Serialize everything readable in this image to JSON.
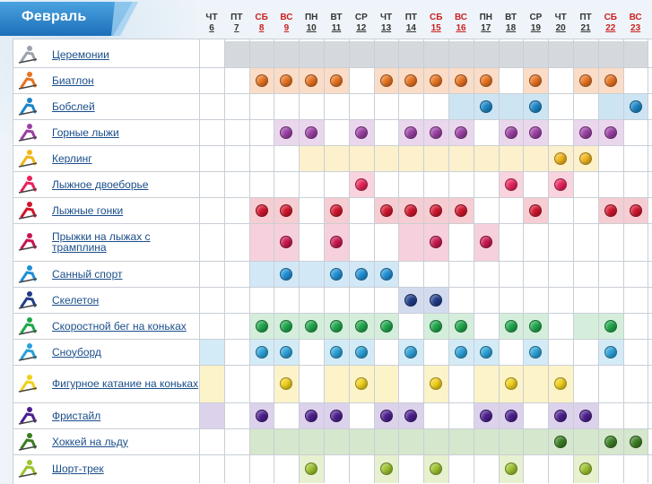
{
  "month": "Февраль",
  "days": [
    {
      "dow": "ЧТ",
      "date": "6"
    },
    {
      "dow": "ПТ",
      "date": "7"
    },
    {
      "dow": "СБ",
      "date": "8"
    },
    {
      "dow": "ВС",
      "date": "9"
    },
    {
      "dow": "ПН",
      "date": "10"
    },
    {
      "dow": "ВТ",
      "date": "11"
    },
    {
      "dow": "СР",
      "date": "12"
    },
    {
      "dow": "ЧТ",
      "date": "13"
    },
    {
      "dow": "ПТ",
      "date": "14"
    },
    {
      "dow": "СБ",
      "date": "15"
    },
    {
      "dow": "ВС",
      "date": "16"
    },
    {
      "dow": "ПН",
      "date": "17"
    },
    {
      "dow": "ВТ",
      "date": "18"
    },
    {
      "dow": "СР",
      "date": "19"
    },
    {
      "dow": "ЧТ",
      "date": "20"
    },
    {
      "dow": "ПТ",
      "date": "21"
    },
    {
      "dow": "СБ",
      "date": "22"
    },
    {
      "dow": "ВС",
      "date": "23"
    }
  ],
  "weekend_color": "#cc2222",
  "sports": [
    {
      "name": "Церемонии",
      "icon": "torch-icon",
      "color": "#9aa3ad",
      "fill": "#d5d9dd",
      "fill_days": [
        "7",
        "8",
        "9",
        "10",
        "11",
        "12",
        "13",
        "14",
        "15",
        "16",
        "17",
        "18",
        "19",
        "20",
        "21",
        "22",
        "23"
      ],
      "dot_days": []
    },
    {
      "name": "Биатлон",
      "icon": "biathlon-icon",
      "color": "#e8731f",
      "fill": "#fbdcc6",
      "fill_days": [
        "8",
        "9",
        "10",
        "11",
        "13",
        "14",
        "15",
        "16",
        "17",
        "19",
        "21",
        "22"
      ],
      "dot_days": [
        "8",
        "9",
        "10",
        "11",
        "13",
        "14",
        "15",
        "16",
        "17",
        "19",
        "21",
        "22"
      ]
    },
    {
      "name": "Бобслей",
      "icon": "bobsleigh-icon",
      "color": "#1a86c7",
      "fill": "#cde4f3",
      "fill_days": [
        "16",
        "17",
        "18",
        "19",
        "22",
        "23"
      ],
      "dot_days": [
        "17",
        "19",
        "23"
      ]
    },
    {
      "name": "Горные лыжи",
      "icon": "alpine-skiing-icon",
      "color": "#9b3fa4",
      "fill": "#ead7ed",
      "fill_days": [
        "9",
        "10",
        "12",
        "14",
        "15",
        "16",
        "18",
        "19",
        "21",
        "22"
      ],
      "dot_days": [
        "9",
        "10",
        "12",
        "14",
        "15",
        "16",
        "18",
        "19",
        "21",
        "22"
      ]
    },
    {
      "name": "Керлинг",
      "icon": "curling-icon",
      "color": "#f2b619",
      "fill": "#fdf0cc",
      "fill_days": [
        "10",
        "11",
        "12",
        "13",
        "14",
        "15",
        "16",
        "17",
        "18",
        "19",
        "20",
        "21"
      ],
      "dot_days": [
        "20",
        "21"
      ]
    },
    {
      "name": "Лыжное двоеборье",
      "icon": "nordic-combined-icon",
      "color": "#e9225a",
      "fill": "#f9d3de",
      "fill_days": [
        "12",
        "18",
        "20"
      ],
      "dot_days": [
        "12",
        "18",
        "20"
      ]
    },
    {
      "name": "Лыжные гонки",
      "icon": "cross-country-icon",
      "color": "#d2142b",
      "fill": "#f6cdd2",
      "fill_days": [
        "8",
        "9",
        "11",
        "13",
        "14",
        "15",
        "16",
        "19",
        "22",
        "23"
      ],
      "dot_days": [
        "8",
        "9",
        "11",
        "13",
        "14",
        "15",
        "16",
        "19",
        "22",
        "23"
      ]
    },
    {
      "name": "Прыжки на лыжах с трамплина",
      "icon": "ski-jumping-icon",
      "color": "#c8164e",
      "fill": "#f6d0dc",
      "fill_days": [
        "8",
        "9",
        "11",
        "14",
        "15",
        "17"
      ],
      "dot_days": [
        "9",
        "11",
        "15",
        "17"
      ]
    },
    {
      "name": "Санный спорт",
      "icon": "luge-icon",
      "color": "#1f8fd6",
      "fill": "#d2e8f7",
      "fill_days": [
        "8",
        "9",
        "10",
        "11",
        "12",
        "13"
      ],
      "dot_days": [
        "9",
        "11",
        "12",
        "13"
      ]
    },
    {
      "name": "Скелетон",
      "icon": "skeleton-icon",
      "color": "#1f3c88",
      "fill": "#d3dcef",
      "fill_days": [
        "14",
        "15"
      ],
      "dot_days": [
        "14",
        "15"
      ]
    },
    {
      "name": "Скоростной бег на коньках",
      "icon": "speed-skating-icon",
      "color": "#1ea64b",
      "fill": "#d4eedb",
      "fill_days": [
        "8",
        "9",
        "10",
        "11",
        "12",
        "13",
        "15",
        "16",
        "18",
        "19",
        "21",
        "22"
      ],
      "dot_days": [
        "8",
        "9",
        "10",
        "11",
        "12",
        "13",
        "15",
        "16",
        "18",
        "19",
        "22"
      ]
    },
    {
      "name": "Сноуборд",
      "icon": "snowboard-icon",
      "color": "#2aa0d8",
      "fill": "#d3ebf7",
      "fill_days": [
        "6",
        "8",
        "9",
        "11",
        "12",
        "14",
        "16",
        "17",
        "19",
        "22"
      ],
      "dot_days": [
        "8",
        "9",
        "11",
        "12",
        "14",
        "16",
        "17",
        "19",
        "22"
      ]
    },
    {
      "name": "Фигурное катание на коньках",
      "icon": "figure-skating-icon",
      "color": "#f0d019",
      "fill": "#fcf3c9",
      "fill_days": [
        "6",
        "9",
        "11",
        "12",
        "13",
        "15",
        "17",
        "18",
        "19",
        "20"
      ],
      "dot_days": [
        "9",
        "12",
        "15",
        "18",
        "20"
      ]
    },
    {
      "name": "Фристайл",
      "icon": "freestyle-icon",
      "color": "#4a1e8e",
      "fill": "#dcd2ec",
      "fill_days": [
        "6",
        "8",
        "10",
        "11",
        "13",
        "14",
        "17",
        "18",
        "20",
        "21"
      ],
      "dot_days": [
        "8",
        "10",
        "11",
        "13",
        "14",
        "17",
        "18",
        "20",
        "21"
      ]
    },
    {
      "name": "Хоккей на льду",
      "icon": "ice-hockey-icon",
      "color": "#3a7d22",
      "fill": "#d5e7cc",
      "fill_days": [
        "8",
        "9",
        "10",
        "11",
        "12",
        "13",
        "14",
        "15",
        "16",
        "17",
        "18",
        "19",
        "20",
        "21",
        "22",
        "23"
      ],
      "dot_days": [
        "20",
        "22",
        "23"
      ]
    },
    {
      "name": "Шорт-трек",
      "icon": "short-track-icon",
      "color": "#9cc22d",
      "fill": "#e7f1cf",
      "fill_days": [
        "10",
        "13",
        "15",
        "18",
        "21"
      ],
      "dot_days": [
        "10",
        "13",
        "15",
        "18",
        "21"
      ]
    }
  ]
}
